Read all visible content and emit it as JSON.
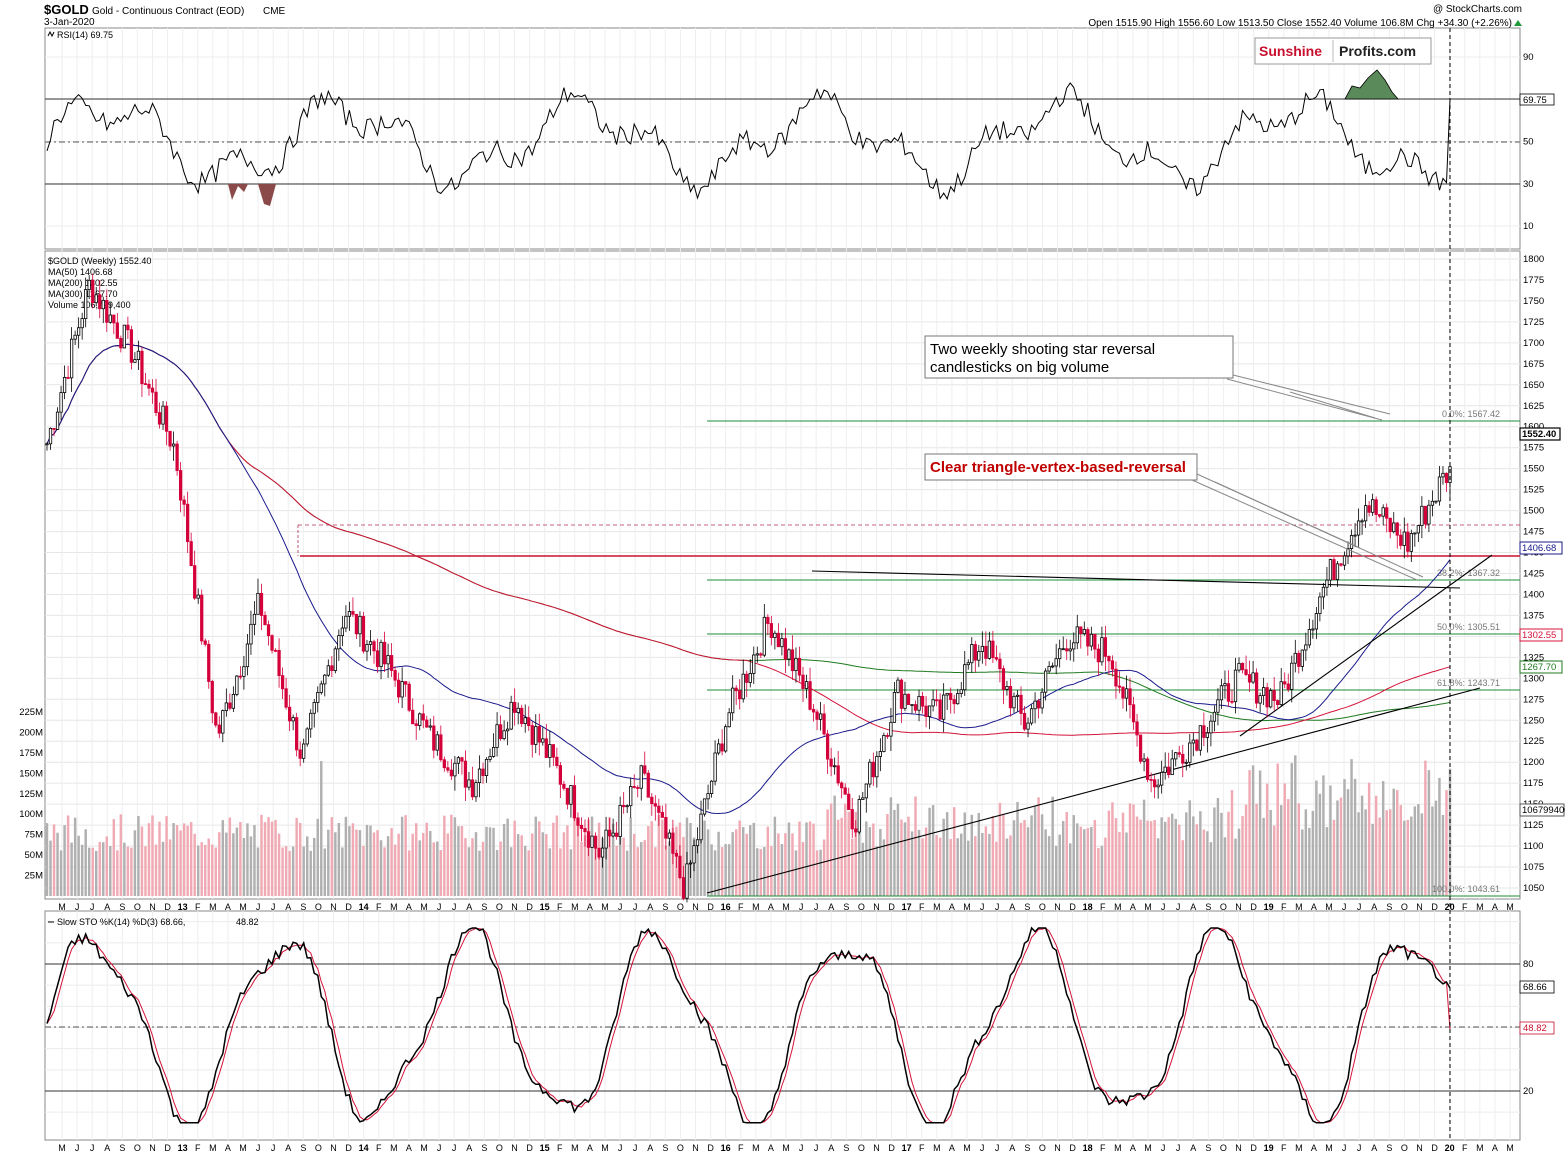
{
  "header": {
    "symbol": "$GOLD",
    "description": "Gold - Continuous Contract (EOD)",
    "exchange": "CME",
    "date": "3-Jan-2020",
    "copyright": "@ StockCharts.com",
    "ohlc": "Open 1515.90  High 1556.60  Low 1513.50  Close 1552.40  Volume 106.8M  Chg +34.30 (+2.26%)"
  },
  "logo": {
    "part1": "Sunshine",
    "part2": "Profits.com"
  },
  "colors": {
    "up": "#000000",
    "down": "#d4003a",
    "ma50": "#1a1a8c",
    "ma200": "#d4143a",
    "ma300": "#1e7a1e",
    "fib": "#1e8c3a",
    "vol_up": "#b0b0b0",
    "vol_down": "#f0aab4",
    "rsi_fill_top": "#5a8a5a",
    "rsi_fill_bottom": "#8a4a4a"
  },
  "rsi_panel": {
    "label": "RSI(14) 69.75",
    "current": "69.75",
    "ticks": [
      "90",
      "70",
      "50",
      "30",
      "10"
    ]
  },
  "price_panel": {
    "label": "$GOLD (Weekly) 1552.40",
    "legend": [
      "MA(50) 1406.68",
      "MA(200) 1302.55",
      "MA(300) 1267.70",
      "Volume 106,799,400"
    ],
    "price_ticks": [
      "1800",
      "1775",
      "1750",
      "1725",
      "1700",
      "1675",
      "1650",
      "1625",
      "1600",
      "1575",
      "1550",
      "1525",
      "1500",
      "1475",
      "1450",
      "1425",
      "1400",
      "1375",
      "1350",
      "1325",
      "1300",
      "1275",
      "1250",
      "1225",
      "1200",
      "1175",
      "1150",
      "1125",
      "1100",
      "1075",
      "1050"
    ],
    "volume_ticks": [
      "225M",
      "200M",
      "175M",
      "150M",
      "125M",
      "100M",
      "75M",
      "50M",
      "25M"
    ],
    "tags": {
      "close": "1552.40",
      "ma50": "1406.68",
      "ma200": "1302.55",
      "ma300": "1267.70",
      "volume": "106799400"
    },
    "fib_labels": [
      "0.0%: 1567.42",
      "38.2%: 1367.32",
      "50.0%: 1305.51",
      "61.8%: 1243.71",
      "100.0%: 1043.61"
    ],
    "annotations": {
      "box1_line1": "Two weekly shooting star reversal",
      "box1_line2": "candlesticks on big volume",
      "box2": "Clear triangle-vertex-based-reversal"
    }
  },
  "sto_panel": {
    "label_k": "Slow STO %K(14) %D(3) 68.66,",
    "label_d": "48.82",
    "current_k": "68.66",
    "current_d": "48.82",
    "ticks": [
      "80",
      "20"
    ]
  },
  "x_axis_top": [
    "M",
    "J",
    "J",
    "A",
    "S",
    "O",
    "N",
    "D",
    "13",
    "F",
    "M",
    "A",
    "M",
    "J",
    "J",
    "A",
    "S",
    "O",
    "N",
    "D",
    "14",
    "F",
    "M",
    "A",
    "M",
    "J",
    "J",
    "A",
    "S",
    "O",
    "N",
    "D",
    "15",
    "F",
    "M",
    "A",
    "M",
    "J",
    "J",
    "A",
    "S",
    "O",
    "N",
    "D",
    "16",
    "F",
    "M",
    "A",
    "M",
    "J",
    "J",
    "A",
    "S",
    "O",
    "N",
    "D",
    "17",
    "F",
    "M",
    "A",
    "M",
    "J",
    "J",
    "A",
    "S",
    "O",
    "N",
    "D",
    "18",
    "F",
    "M",
    "A",
    "M",
    "J",
    "J",
    "A",
    "S",
    "O",
    "N",
    "D",
    "19",
    "F",
    "M",
    "A",
    "M",
    "J",
    "J",
    "A",
    "S",
    "O",
    "N",
    "D",
    "20",
    "F",
    "M",
    "A",
    "M"
  ],
  "chart_data": {
    "type": "line",
    "title": "$GOLD Gold - Continuous Contract (EOD) CME",
    "x": [
      "2012-05",
      "2012-09",
      "2013-01",
      "2013-04",
      "2013-06",
      "2013-08",
      "2013-12",
      "2014-03",
      "2014-06",
      "2014-09",
      "2014-11",
      "2015-01",
      "2015-03",
      "2015-07",
      "2015-10",
      "2015-12",
      "2016-03",
      "2016-07",
      "2016-10",
      "2016-12",
      "2017-04",
      "2017-06",
      "2017-09",
      "2017-12",
      "2018-01",
      "2018-04",
      "2018-08",
      "2018-10",
      "2019-01",
      "2019-04",
      "2019-06",
      "2019-09",
      "2019-11",
      "2020-01"
    ],
    "series": [
      {
        "name": "$GOLD (Weekly)",
        "values": [
          1580,
          1770,
          1690,
          1575,
          1230,
          1390,
          1205,
          1380,
          1315,
          1230,
          1175,
          1275,
          1190,
          1090,
          1180,
          1050,
          1255,
          1370,
          1270,
          1130,
          1285,
          1255,
          1345,
          1245,
          1350,
          1330,
          1175,
          1230,
          1300,
          1275,
          1405,
          1510,
          1460,
          1552.4
        ]
      }
    ],
    "ylim": [
      1040,
      1810
    ],
    "grid": true,
    "legend": "top-left"
  }
}
